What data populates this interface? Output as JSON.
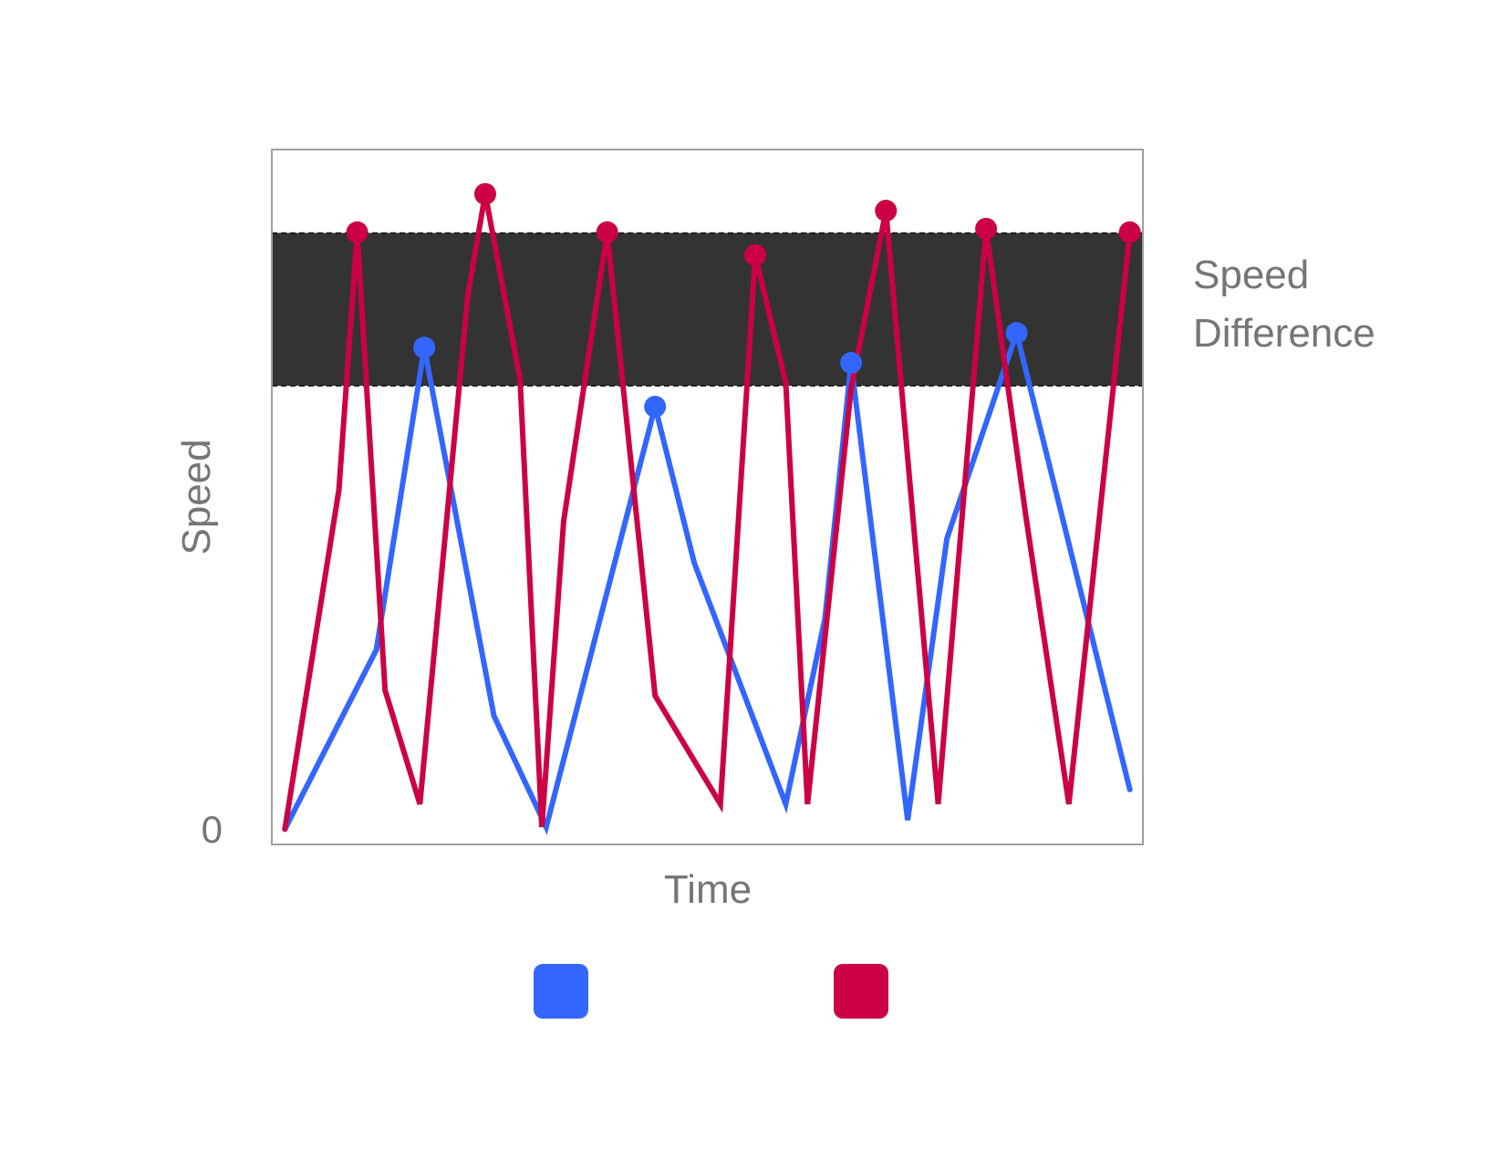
{
  "chart_data": {
    "type": "line",
    "title": "",
    "xlabel": "Time",
    "ylabel": "Speed",
    "y_tick_labels": [
      "0"
    ],
    "xlim": [
      0,
      100
    ],
    "ylim": [
      0,
      100
    ],
    "band": {
      "label_line1": "Speed",
      "label_line2": "Difference",
      "y_range": [
        66,
        88
      ],
      "color": "#333333"
    },
    "legend": {
      "placement": "bottom",
      "entries": [
        {
          "color": "#3366ff"
        },
        {
          "color": "#cc0044"
        }
      ]
    },
    "series": [
      {
        "color": "#3366ff",
        "points": [
          [
            1.5,
            2.2
          ],
          [
            12,
            28
          ],
          [
            17.5,
            71.5
          ],
          [
            25.5,
            18.5
          ],
          [
            31.5,
            2.5
          ],
          [
            44,
            63
          ],
          [
            48.5,
            40.5
          ],
          [
            59,
            5.8
          ],
          [
            63.5,
            32.5
          ],
          [
            66.5,
            69.3
          ],
          [
            73,
            3.5
          ],
          [
            77.5,
            44
          ],
          [
            85.5,
            73.6
          ],
          [
            98.5,
            7.9
          ]
        ],
        "markers": [
          [
            17.5,
            71.5
          ],
          [
            44,
            63
          ],
          [
            66.5,
            69.3
          ],
          [
            85.5,
            73.6
          ]
        ]
      },
      {
        "color": "#cc0044",
        "points": [
          [
            1.5,
            2.2
          ],
          [
            7.7,
            51
          ],
          [
            9.8,
            88.1
          ],
          [
            13,
            22.2
          ],
          [
            17,
            5.8
          ],
          [
            22.5,
            79
          ],
          [
            24.5,
            93.6
          ],
          [
            28.5,
            66.9
          ],
          [
            31,
            2.5
          ],
          [
            33.5,
            46.5
          ],
          [
            38.5,
            88.1
          ],
          [
            44,
            21.4
          ],
          [
            51.5,
            5.8
          ],
          [
            55.5,
            84.8
          ],
          [
            59,
            66.5
          ],
          [
            61.5,
            5.8
          ],
          [
            66.5,
            65.6
          ],
          [
            70.5,
            91.2
          ],
          [
            76.5,
            5.8
          ],
          [
            82,
            88.6
          ],
          [
            86.5,
            47.8
          ],
          [
            91.5,
            5.8
          ],
          [
            98.5,
            88.1
          ]
        ],
        "markers": [
          [
            9.8,
            88.1
          ],
          [
            24.5,
            93.6
          ],
          [
            38.5,
            88.1
          ],
          [
            55.5,
            84.8
          ],
          [
            70.5,
            91.2
          ],
          [
            82,
            88.6
          ],
          [
            98.5,
            88.1
          ]
        ]
      }
    ]
  }
}
